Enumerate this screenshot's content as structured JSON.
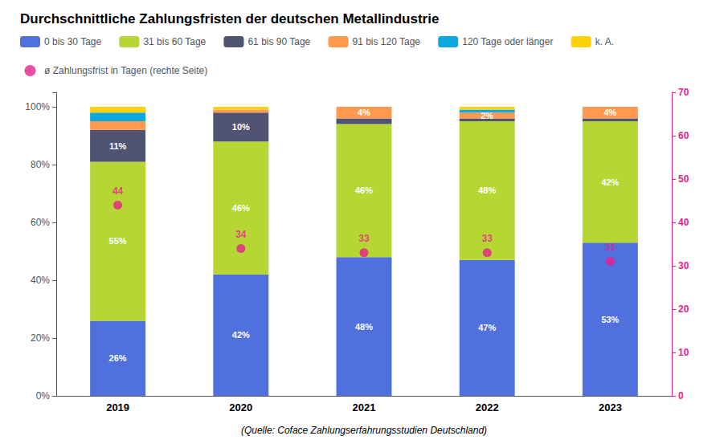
{
  "chart_data": {
    "type": "bar",
    "title": "Durchschnittliche Zahlungsfristen der deutschen Metallindustrie",
    "annotations": [
      "(Quelle: Coface Zahlungserfahrungsstudien Deutschland)"
    ],
    "categories": [
      "2019",
      "2020",
      "2021",
      "2022",
      "2023"
    ],
    "stacked": true,
    "series": [
      {
        "name": "0 bis 30 Tage",
        "values": [
          26,
          42,
          48,
          47,
          53
        ],
        "value_labels": [
          "26%",
          "42%",
          "48%",
          "47%",
          "53%"
        ]
      },
      {
        "name": "31 bis 60 Tage",
        "values": [
          55,
          46,
          46,
          48,
          42
        ],
        "value_labels": [
          "55%",
          "46%",
          "46%",
          "48%",
          "42%"
        ]
      },
      {
        "name": "61 bis 90 Tage",
        "values": [
          11,
          10,
          2,
          1,
          1
        ],
        "value_labels": [
          "11%",
          "10%",
          null,
          null,
          null
        ]
      },
      {
        "name": "91 bis 120 Tage",
        "values": [
          3,
          1,
          4,
          2,
          4
        ],
        "value_labels": [
          null,
          null,
          "4%",
          "2%",
          "4%"
        ]
      },
      {
        "name": "120 Tage oder länger",
        "values": [
          3,
          0,
          0,
          1,
          0
        ]
      },
      {
        "name": "k. A.",
        "values": [
          2,
          1,
          0,
          1,
          0
        ]
      },
      {
        "name": "ø Zahlungsfrist in Tagen (rechte Seite)",
        "type": "scatter",
        "axis": "y2",
        "color": "#E91E8C",
        "marker": "circle",
        "data_labels": true,
        "values": [
          44,
          34,
          33,
          33,
          31
        ]
      }
    ],
    "ylim": [
      0,
      105
    ],
    "yticks": [
      {
        "value": 0,
        "label": "0%"
      },
      {
        "value": 20,
        "label": "20%"
      },
      {
        "value": 40,
        "label": "40%"
      },
      {
        "value": 60,
        "label": "60%"
      },
      {
        "value": 80,
        "label": "80%"
      },
      {
        "value": 100,
        "label": "100%"
      }
    ],
    "y2lim": [
      0,
      70
    ],
    "y2ticks": [
      0,
      10,
      20,
      30,
      40,
      50,
      60,
      70
    ],
    "grid": false,
    "legend": "upper left"
  }
}
